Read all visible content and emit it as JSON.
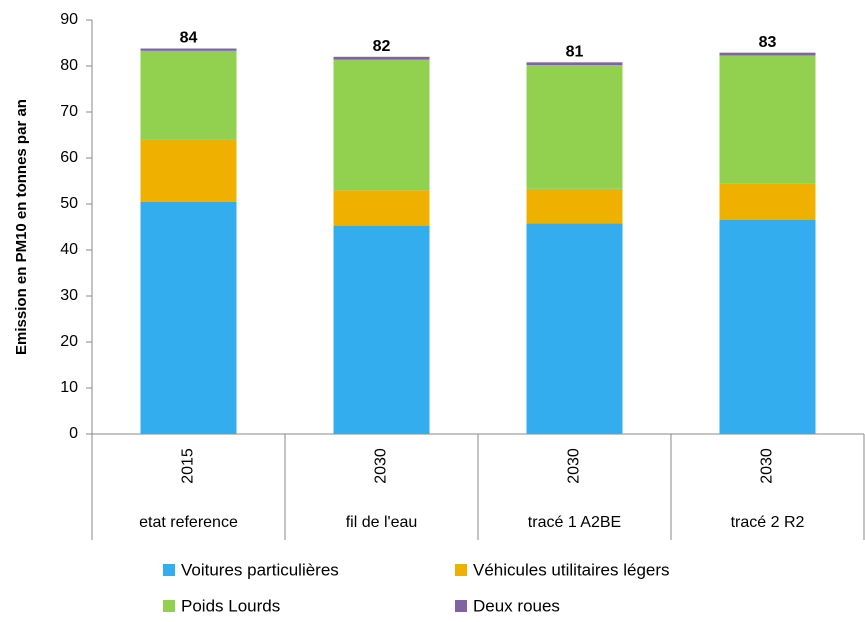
{
  "chart_data": {
    "type": "stacked_bar",
    "ylabel": "Emission en PM10  en tonnes par an",
    "years": [
      "2015",
      "2030",
      "2030",
      "2030"
    ],
    "categories": [
      "etat reference",
      "fil de l'eau",
      "tracé 1 A2BE",
      "tracé 2 R2"
    ],
    "series": [
      {
        "name": "Voitures particulières",
        "color": "#33adee",
        "values": [
          50.5,
          45.3,
          45.8,
          46.6
        ]
      },
      {
        "name": "Véhicules utilitaires légers",
        "color": "#f0b000",
        "values": [
          13.5,
          7.7,
          7.5,
          7.9
        ]
      },
      {
        "name": "Poids Lourds",
        "color": "#92d050",
        "values": [
          19.3,
          28.4,
          26.9,
          27.8
        ]
      },
      {
        "name": "Deux roues",
        "color": "#8064a2",
        "values": [
          0.5,
          0.6,
          0.6,
          0.6
        ]
      }
    ],
    "total_labels": [
      "84",
      "82",
      "81",
      "83"
    ],
    "ylim": [
      0,
      90
    ],
    "yticks": [
      0,
      10,
      20,
      30,
      40,
      50,
      60,
      70,
      80,
      90
    ],
    "grid": false
  }
}
